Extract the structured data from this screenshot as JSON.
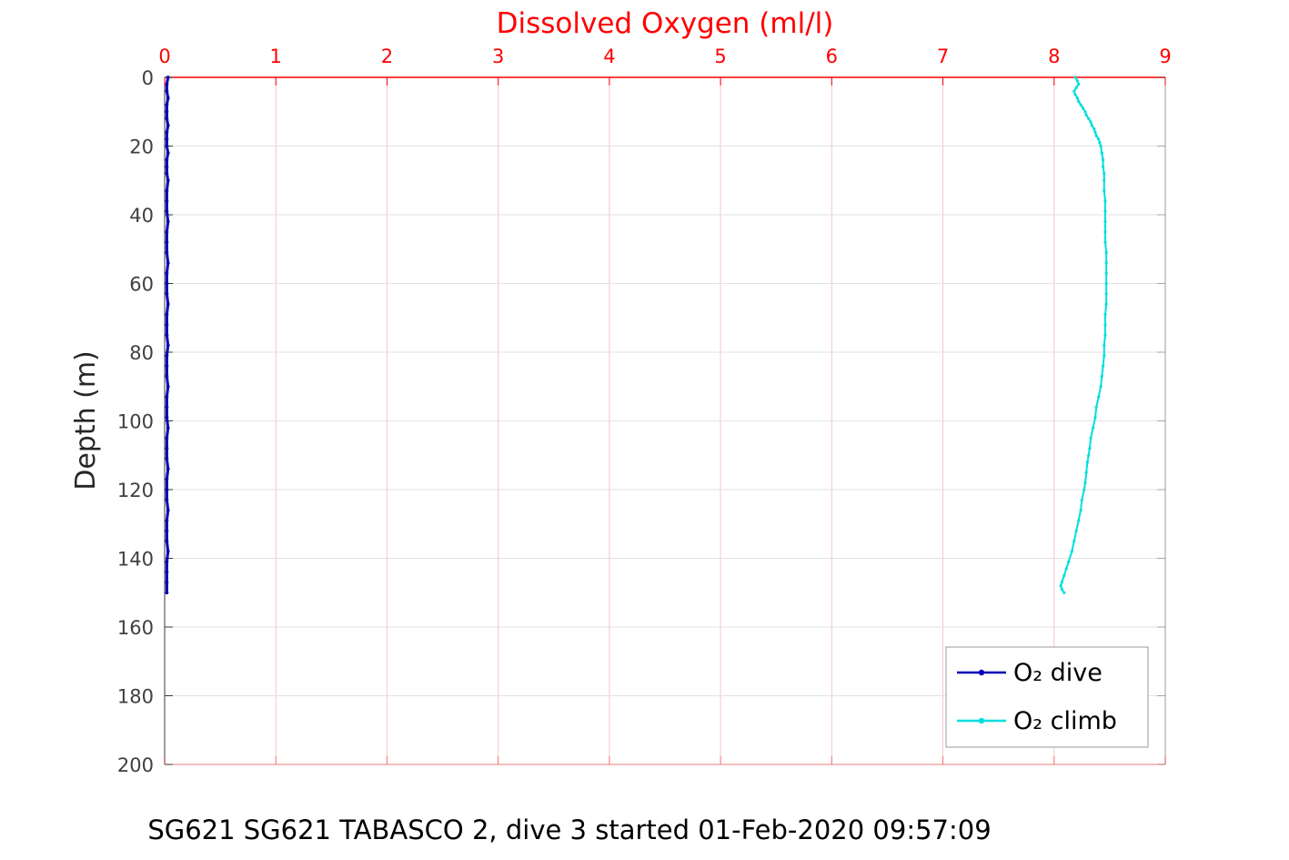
{
  "figure": {
    "background": "#ffffff"
  },
  "chart_data": {
    "type": "line",
    "title": "Dissolved Oxygen (ml/l)",
    "xlabel": "Dissolved Oxygen (ml/l)",
    "ylabel": "Depth (m)",
    "x_axis_location": "top",
    "y_inverted": true,
    "grid": true,
    "xlim": [
      0,
      9
    ],
    "ylim": [
      0,
      200
    ],
    "xticks": [
      0,
      1,
      2,
      3,
      4,
      5,
      6,
      7,
      8,
      9
    ],
    "yticks": [
      0,
      20,
      40,
      60,
      80,
      100,
      120,
      140,
      160,
      180,
      200
    ],
    "colors": {
      "title": "#ff0000",
      "x_axis": "#ff0000",
      "y_axis": "#3a3a3a",
      "grid_x": "#f3c8c8",
      "grid_y": "#e2e2e2",
      "dive": "#0000b8",
      "climb": "#00dede"
    },
    "legend": {
      "position": "bottom-right",
      "entries": [
        "O₂ dive",
        "O₂ climb"
      ]
    },
    "series": [
      {
        "name": "O₂ dive",
        "color_key": "dive",
        "units": {
          "x": "ml/l",
          "y": "m"
        },
        "points": [
          [
            0,
            0.03
          ],
          [
            2,
            0.02
          ],
          [
            4,
            0.02
          ],
          [
            6,
            0.03
          ],
          [
            8,
            0.02
          ],
          [
            10,
            0.02
          ],
          [
            12,
            0.02
          ],
          [
            14,
            0.03
          ],
          [
            16,
            0.02
          ],
          [
            18,
            0.02
          ],
          [
            20,
            0.02
          ],
          [
            22,
            0.03
          ],
          [
            24,
            0.02
          ],
          [
            26,
            0.02
          ],
          [
            28,
            0.02
          ],
          [
            30,
            0.03
          ],
          [
            33,
            0.02
          ],
          [
            36,
            0.02
          ],
          [
            39,
            0.02
          ],
          [
            42,
            0.03
          ],
          [
            45,
            0.02
          ],
          [
            48,
            0.02
          ],
          [
            51,
            0.02
          ],
          [
            54,
            0.03
          ],
          [
            57,
            0.02
          ],
          [
            60,
            0.02
          ],
          [
            63,
            0.02
          ],
          [
            66,
            0.03
          ],
          [
            69,
            0.02
          ],
          [
            72,
            0.02
          ],
          [
            75,
            0.02
          ],
          [
            78,
            0.03
          ],
          [
            81,
            0.02
          ],
          [
            84,
            0.02
          ],
          [
            87,
            0.02
          ],
          [
            90,
            0.03
          ],
          [
            93,
            0.02
          ],
          [
            96,
            0.02
          ],
          [
            99,
            0.02
          ],
          [
            102,
            0.03
          ],
          [
            105,
            0.02
          ],
          [
            108,
            0.02
          ],
          [
            111,
            0.02
          ],
          [
            114,
            0.03
          ],
          [
            117,
            0.02
          ],
          [
            120,
            0.02
          ],
          [
            123,
            0.02
          ],
          [
            126,
            0.03
          ],
          [
            129,
            0.02
          ],
          [
            132,
            0.02
          ],
          [
            135,
            0.02
          ],
          [
            138,
            0.03
          ],
          [
            141,
            0.02
          ],
          [
            144,
            0.02
          ],
          [
            147,
            0.02
          ],
          [
            150,
            0.02
          ]
        ]
      },
      {
        "name": "O₂ climb",
        "color_key": "climb",
        "units": {
          "x": "ml/l",
          "y": "m"
        },
        "points": [
          [
            0,
            8.19
          ],
          [
            1,
            8.21
          ],
          [
            2,
            8.22
          ],
          [
            3,
            8.2
          ],
          [
            4,
            8.18
          ],
          [
            5,
            8.19
          ],
          [
            6,
            8.21
          ],
          [
            7,
            8.22
          ],
          [
            8,
            8.24
          ],
          [
            9,
            8.26
          ],
          [
            10,
            8.28
          ],
          [
            11,
            8.29
          ],
          [
            12,
            8.31
          ],
          [
            13,
            8.33
          ],
          [
            14,
            8.34
          ],
          [
            15,
            8.36
          ],
          [
            16,
            8.37
          ],
          [
            17,
            8.38
          ],
          [
            18,
            8.4
          ],
          [
            19,
            8.41
          ],
          [
            20,
            8.42
          ],
          [
            22,
            8.43
          ],
          [
            24,
            8.44
          ],
          [
            26,
            8.44
          ],
          [
            28,
            8.45
          ],
          [
            30,
            8.45
          ],
          [
            33,
            8.45
          ],
          [
            36,
            8.46
          ],
          [
            39,
            8.46
          ],
          [
            42,
            8.46
          ],
          [
            45,
            8.46
          ],
          [
            48,
            8.46
          ],
          [
            51,
            8.47
          ],
          [
            54,
            8.47
          ],
          [
            57,
            8.47
          ],
          [
            60,
            8.47
          ],
          [
            63,
            8.47
          ],
          [
            66,
            8.47
          ],
          [
            69,
            8.46
          ],
          [
            72,
            8.46
          ],
          [
            75,
            8.46
          ],
          [
            78,
            8.45
          ],
          [
            81,
            8.45
          ],
          [
            84,
            8.44
          ],
          [
            87,
            8.43
          ],
          [
            90,
            8.42
          ],
          [
            93,
            8.4
          ],
          [
            96,
            8.38
          ],
          [
            99,
            8.37
          ],
          [
            102,
            8.35
          ],
          [
            105,
            8.33
          ],
          [
            108,
            8.32
          ],
          [
            110,
            8.31
          ],
          [
            112,
            8.3
          ],
          [
            115,
            8.29
          ],
          [
            118,
            8.28
          ],
          [
            120,
            8.27
          ],
          [
            123,
            8.25
          ],
          [
            126,
            8.24
          ],
          [
            129,
            8.22
          ],
          [
            132,
            8.2
          ],
          [
            135,
            8.18
          ],
          [
            138,
            8.16
          ],
          [
            141,
            8.13
          ],
          [
            143,
            8.11
          ],
          [
            145,
            8.09
          ],
          [
            147,
            8.07
          ],
          [
            148,
            8.06
          ],
          [
            149,
            8.07
          ],
          [
            150,
            8.09
          ]
        ]
      }
    ],
    "caption": "SG621 SG621 TABASCO 2, dive 3 started 01-Feb-2020 09:57:09"
  }
}
